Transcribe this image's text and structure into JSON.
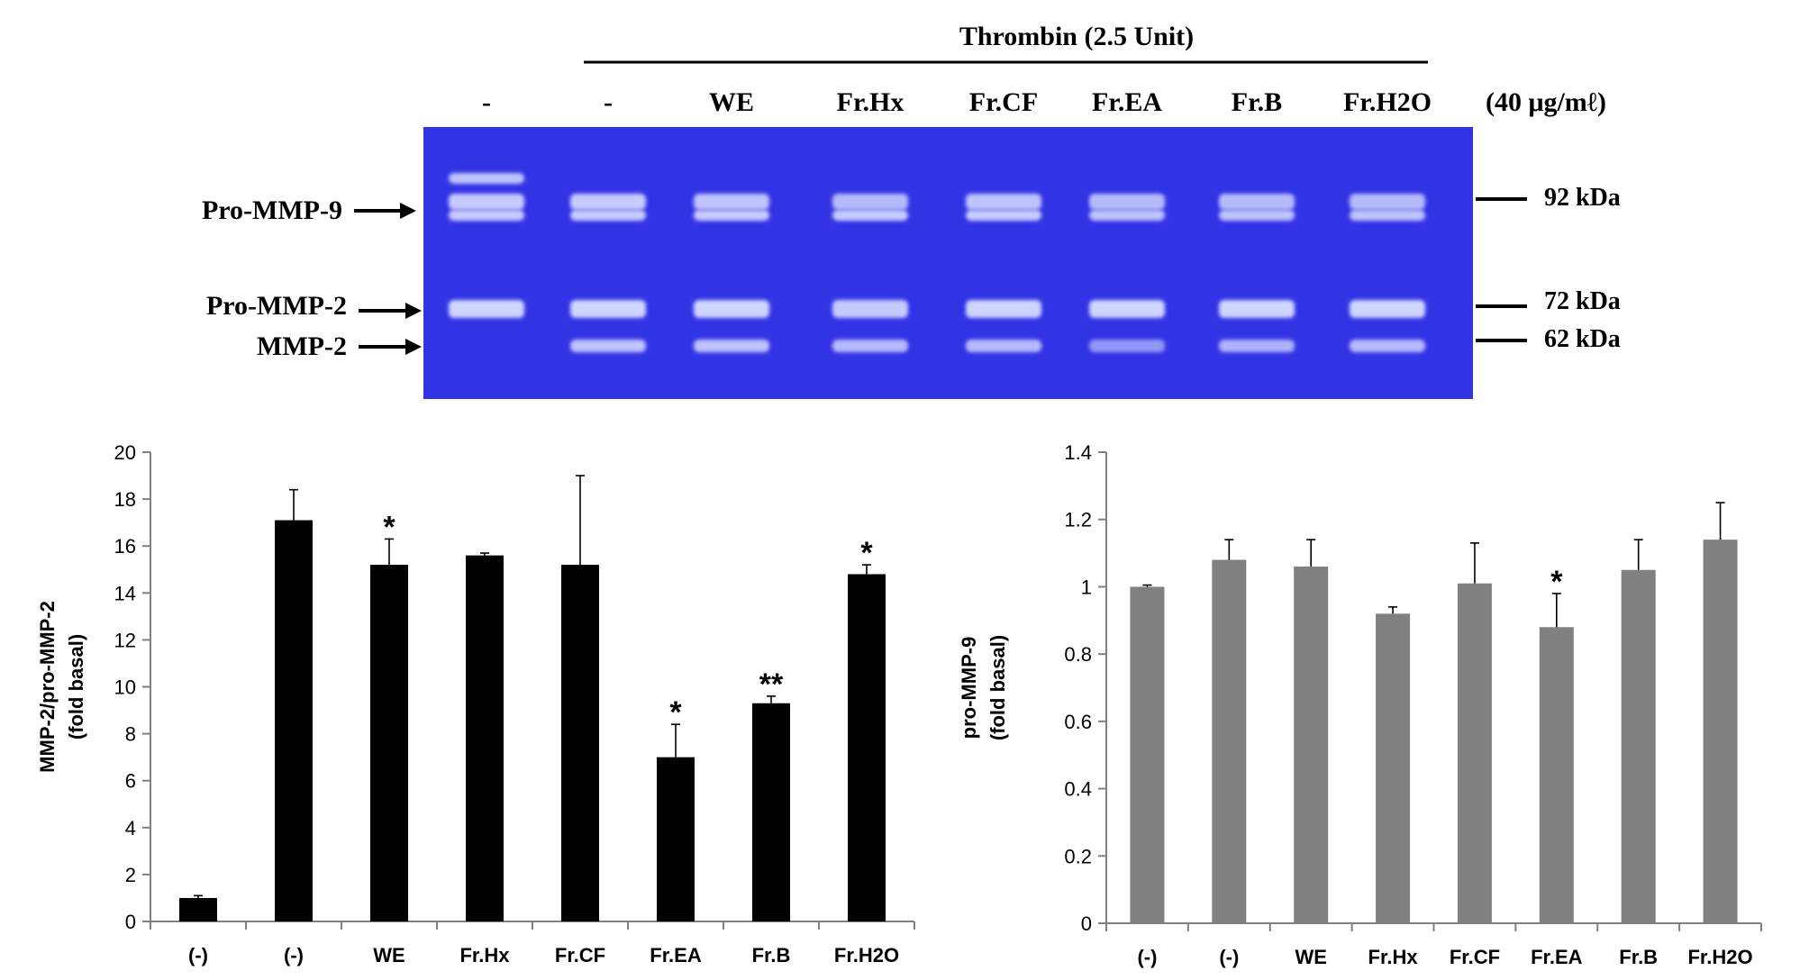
{
  "gel": {
    "header_title": "Thrombin (2.5 Unit)",
    "lane_labels": [
      "-",
      "-",
      "WE",
      "Fr.Hx",
      "Fr.CF",
      "Fr.EA",
      "Fr.B",
      "Fr.H2O"
    ],
    "concentration": "(40 μg/mℓ)",
    "band_labels": [
      "Pro-MMP-9",
      "Pro-MMP-2",
      "MMP-2"
    ],
    "markers": [
      "92 kDa",
      "72 kDa",
      "62 kDa"
    ],
    "background_color": "#3333e6",
    "band_color": "#d6dcff"
  },
  "chart_data": [
    {
      "type": "bar",
      "categories": [
        "(-)",
        "(-)",
        "WE",
        "Fr.Hx",
        "Fr.CF",
        "Fr.EA",
        "Fr.B",
        "Fr.H2O"
      ],
      "values": [
        1.0,
        17.1,
        15.2,
        15.6,
        15.2,
        7.0,
        9.3,
        14.8
      ],
      "errors": [
        0.1,
        1.3,
        1.1,
        0.1,
        3.8,
        1.4,
        0.3,
        0.4
      ],
      "significance": [
        "",
        "",
        "*",
        "",
        "",
        "*",
        "**",
        "*"
      ],
      "ylabel": "MMP-2/pro-MMP-2",
      "ylabel_sub": "(fold basal)",
      "ylim": [
        0,
        20
      ],
      "yticks": [
        "0",
        "2",
        "4",
        "6",
        "8",
        "10",
        "12",
        "14",
        "16",
        "18",
        "20"
      ],
      "grid": false,
      "bar_color": "#000000"
    },
    {
      "type": "bar",
      "categories": [
        "(-)",
        "(-)",
        "WE",
        "Fr.Hx",
        "Fr.CF",
        "Fr.EA",
        "Fr.B",
        "Fr.H2O"
      ],
      "values": [
        1.0,
        1.08,
        1.06,
        0.92,
        1.01,
        0.88,
        1.05,
        1.14
      ],
      "errors": [
        0.005,
        0.06,
        0.08,
        0.02,
        0.12,
        0.1,
        0.09,
        0.11
      ],
      "significance": [
        "",
        "",
        "",
        "",
        "",
        "*",
        "",
        ""
      ],
      "ylabel": "pro-MMP-9",
      "ylabel_sub": "(fold basal)",
      "ylim": [
        0,
        1.4
      ],
      "yticks": [
        "0",
        "0.2",
        "0.4",
        "0.6",
        "0.8",
        "1",
        "1.2",
        "1.4"
      ],
      "grid": false,
      "bar_color": "#808080"
    }
  ]
}
